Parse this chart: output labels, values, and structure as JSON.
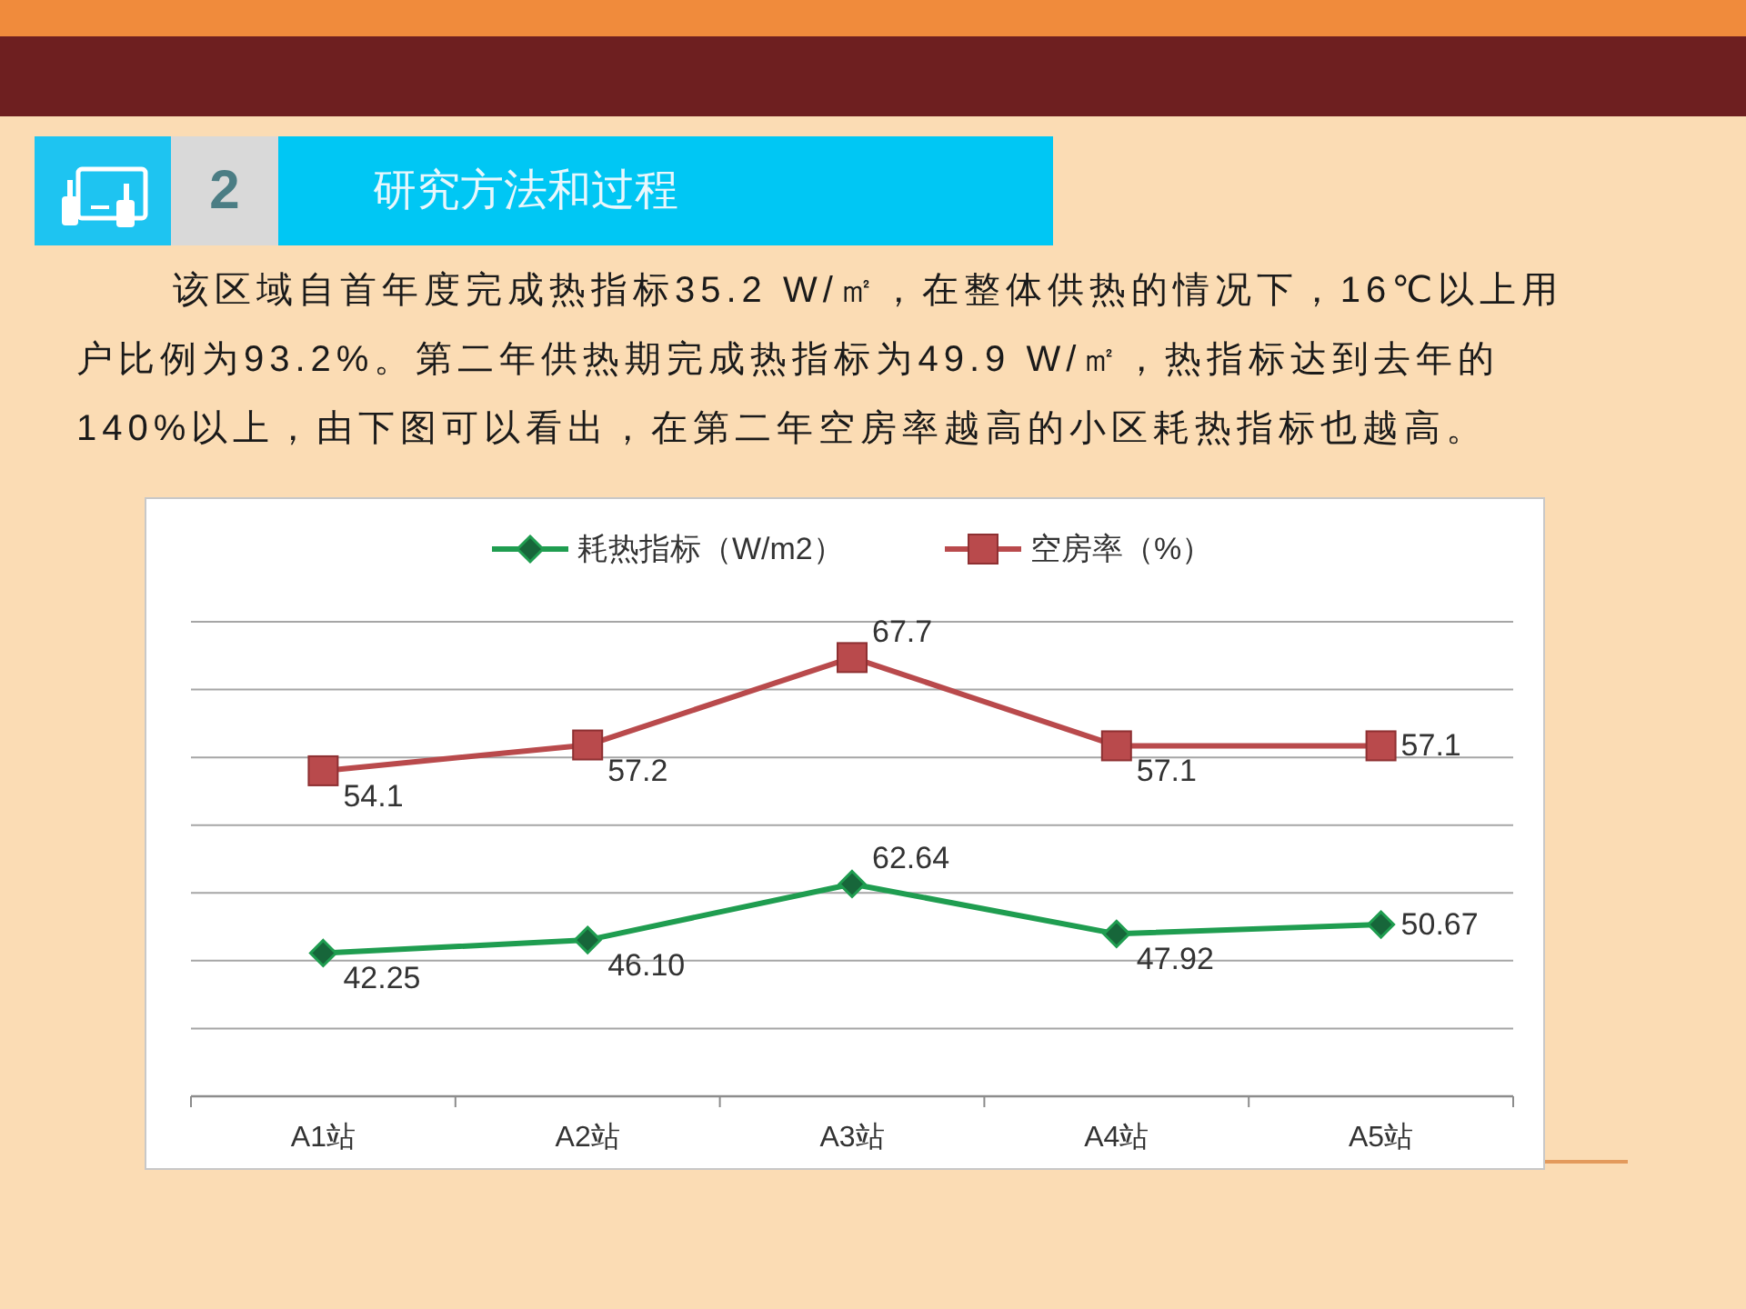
{
  "chart_data": {
    "type": "line",
    "title": "研究方法和过程",
    "annotations": [
      "2"
    ],
    "subtitle": "该区域自首年度完成热指标35.2 W/㎡，在整体供热的情况下，16℃以上用户比例为93.2%。第二年供热期完成热指标为49.9 W/㎡，热指标达到去年的140%以上，由下图可以看出，在第二年空房率越高的小区耗热指标也越高。",
    "categories": [
      "A1站",
      "A2站",
      "A3站",
      "A4站",
      "A5站"
    ],
    "series": [
      {
        "name": "耗热指标（W/m2）",
        "color": "#1f9d50",
        "marker": "diamond",
        "values": [
          42.25,
          46.1,
          62.64,
          47.92,
          50.67
        ],
        "value_labels": [
          "42.25",
          "46.10",
          "62.64",
          "47.92",
          "50.67"
        ]
      },
      {
        "name": "空房率（%）",
        "color": "#b94a4c",
        "marker": "square",
        "axis": "y2",
        "values": [
          54.1,
          57.2,
          67.7,
          57.1,
          57.1
        ],
        "value_labels": [
          "54.1",
          "57.2",
          "67.7",
          "57.1",
          "57.1"
        ]
      }
    ],
    "ylim": [
      0,
      140
    ],
    "yticks": [
      0,
      20,
      40,
      60,
      80,
      100,
      120,
      140
    ],
    "y2lim": [
      15,
      72
    ],
    "grid": "y",
    "legend": "top",
    "tick_labels": "x",
    "line_style": "solid"
  }
}
